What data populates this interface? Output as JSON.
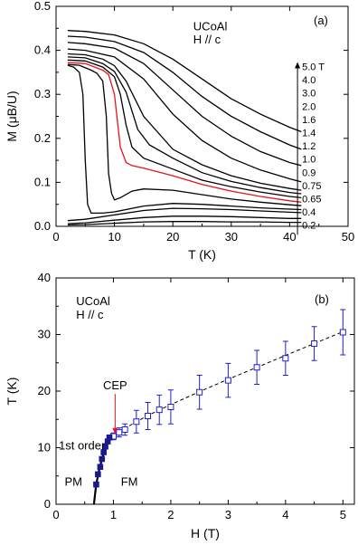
{
  "chart_data": [
    {
      "type": "line",
      "panel_label": "(a)",
      "annotation": [
        "UCoAl",
        "H // c"
      ],
      "xlabel": "T (K)",
      "ylabel": "M (μB/U)",
      "xlim": [
        0,
        50
      ],
      "ylim": [
        0,
        0.5
      ],
      "xticks": [
        "0",
        "10",
        "20",
        "30",
        "40",
        "50"
      ],
      "yticks": [
        "0.0",
        "0.1",
        "0.2",
        "0.3",
        "0.4",
        "0.5"
      ],
      "legend_order": [
        "5.0 T",
        "4.0",
        "3.0",
        "2.0",
        "1.6",
        "1.4",
        "1.2",
        "1.0",
        "0.9",
        "0.75",
        "0.65",
        "0.4",
        "0.2"
      ],
      "highlight_series": "1.0",
      "highlight_color": "#e8141a",
      "series": [
        {
          "name": "5.0 T",
          "color": "#000000",
          "x": [
            2,
            5,
            10,
            15,
            20,
            25,
            30,
            35,
            40,
            42
          ],
          "y": [
            0.445,
            0.443,
            0.435,
            0.415,
            0.38,
            0.335,
            0.29,
            0.255,
            0.225,
            0.215
          ]
        },
        {
          "name": "4.0",
          "color": "#000000",
          "x": [
            2,
            5,
            10,
            15,
            20,
            25,
            30,
            35,
            40,
            42
          ],
          "y": [
            0.432,
            0.43,
            0.42,
            0.395,
            0.35,
            0.295,
            0.25,
            0.215,
            0.185,
            0.175
          ]
        },
        {
          "name": "3.0",
          "color": "#000000",
          "x": [
            2,
            5,
            10,
            15,
            20,
            25,
            30,
            35,
            40,
            42
          ],
          "y": [
            0.418,
            0.415,
            0.405,
            0.37,
            0.31,
            0.25,
            0.205,
            0.17,
            0.145,
            0.138
          ]
        },
        {
          "name": "2.0",
          "color": "#000000",
          "x": [
            2,
            5,
            10,
            15,
            20,
            25,
            30,
            35,
            40,
            42
          ],
          "y": [
            0.403,
            0.4,
            0.385,
            0.335,
            0.255,
            0.195,
            0.155,
            0.128,
            0.108,
            0.101
          ]
        },
        {
          "name": "1.6",
          "color": "#000000",
          "x": [
            2,
            5,
            8,
            10,
            12,
            15,
            20,
            25,
            30,
            35,
            40,
            42
          ],
          "y": [
            0.392,
            0.39,
            0.38,
            0.365,
            0.33,
            0.25,
            0.175,
            0.14,
            0.115,
            0.098,
            0.086,
            0.082
          ]
        },
        {
          "name": "1.4",
          "color": "#000000",
          "x": [
            2,
            5,
            8,
            10,
            12,
            14,
            16,
            20,
            25,
            30,
            35,
            40,
            42
          ],
          "y": [
            0.385,
            0.383,
            0.37,
            0.352,
            0.305,
            0.22,
            0.185,
            0.155,
            0.122,
            0.102,
            0.088,
            0.077,
            0.074
          ]
        },
        {
          "name": "1.2",
          "color": "#000000",
          "x": [
            2,
            5,
            8,
            10,
            11,
            12,
            13,
            15,
            20,
            25,
            30,
            35,
            40,
            42
          ],
          "y": [
            0.378,
            0.376,
            0.362,
            0.34,
            0.3,
            0.23,
            0.18,
            0.155,
            0.13,
            0.105,
            0.09,
            0.078,
            0.068,
            0.065
          ]
        },
        {
          "name": "1.0",
          "color": "#e8141a",
          "x": [
            2,
            5,
            8,
            9,
            10,
            11,
            12,
            13,
            15,
            20,
            25,
            30,
            35,
            40,
            42
          ],
          "y": [
            0.372,
            0.37,
            0.355,
            0.345,
            0.3,
            0.18,
            0.145,
            0.138,
            0.132,
            0.115,
            0.095,
            0.08,
            0.068,
            0.058,
            0.055
          ]
        },
        {
          "name": "0.9",
          "color": "#000000",
          "x": [
            2,
            4,
            6,
            7,
            8,
            8.6,
            9,
            9.5,
            10,
            11,
            13,
            15,
            20,
            25,
            30,
            35,
            40,
            42
          ],
          "y": [
            0.368,
            0.366,
            0.355,
            0.348,
            0.33,
            0.25,
            0.12,
            0.075,
            0.06,
            0.065,
            0.08,
            0.085,
            0.082,
            0.072,
            0.062,
            0.055,
            0.049,
            0.047
          ]
        },
        {
          "name": "0.75",
          "color": "#000000",
          "x": [
            2,
            3,
            4,
            4.6,
            5,
            5.4,
            6,
            8,
            10,
            15,
            20,
            25,
            30,
            35,
            40,
            42
          ],
          "y": [
            0.366,
            0.362,
            0.35,
            0.3,
            0.15,
            0.05,
            0.03,
            0.03,
            0.033,
            0.046,
            0.052,
            0.05,
            0.046,
            0.042,
            0.039,
            0.038
          ]
        },
        {
          "name": "0.65",
          "color": "#000000",
          "x": [
            2,
            5,
            10,
            15,
            20,
            25,
            30,
            35,
            40,
            42
          ],
          "y": [
            0.013,
            0.016,
            0.026,
            0.036,
            0.041,
            0.04,
            0.038,
            0.035,
            0.032,
            0.031
          ]
        },
        {
          "name": "0.4",
          "color": "#000000",
          "x": [
            2,
            5,
            10,
            15,
            20,
            25,
            30,
            35,
            40,
            42
          ],
          "y": [
            0.006,
            0.008,
            0.014,
            0.02,
            0.023,
            0.023,
            0.022,
            0.02,
            0.018,
            0.018
          ]
        },
        {
          "name": "0.2",
          "color": "#000000",
          "x": [
            2,
            5,
            10,
            15,
            20,
            25,
            30,
            35,
            40,
            42
          ],
          "y": [
            0.003,
            0.004,
            0.007,
            0.01,
            0.011,
            0.011,
            0.01,
            0.01,
            0.009,
            0.009
          ]
        }
      ]
    },
    {
      "type": "scatter",
      "panel_label": "(b)",
      "annotation": [
        "UCoAl",
        "H // c"
      ],
      "xlabel": "H (T)",
      "ylabel": "T (K)",
      "xlim": [
        0,
        5.2
      ],
      "ylim": [
        0,
        40
      ],
      "xticks": [
        "0",
        "1",
        "2",
        "3",
        "4",
        "5"
      ],
      "yticks": [
        "0",
        "10",
        "20",
        "30",
        "40"
      ],
      "labels": {
        "cep": "CEP",
        "first_order": "1st order",
        "pm": "PM",
        "fm": "FM"
      },
      "cep_color": "#e8141a",
      "marker_color": "#1f1fd6",
      "first_order_points": {
        "x": [
          0.7,
          0.73,
          0.77,
          0.8,
          0.83,
          0.86,
          0.9,
          0.93
        ],
        "y": [
          3.5,
          5.3,
          6.6,
          8.0,
          9.2,
          10.2,
          11.1,
          11.8
        ]
      },
      "crossover_points": {
        "x": [
          1.0,
          1.1,
          1.2,
          1.4,
          1.6,
          1.8,
          2.0,
          2.5,
          3.0,
          3.5,
          4.0,
          4.5,
          5.0
        ],
        "y": [
          12.0,
          12.7,
          13.2,
          14.6,
          15.6,
          16.7,
          17.2,
          19.8,
          21.9,
          24.2,
          25.8,
          28.4,
          30.4
        ],
        "err": [
          0.6,
          0.8,
          1.0,
          2.0,
          2.4,
          2.6,
          3.0,
          3.0,
          3.0,
          3.0,
          3.0,
          3.0,
          4.0
        ]
      },
      "first_order_line": {
        "x": [
          0.66,
          0.7,
          0.75,
          0.8,
          0.85,
          0.9,
          0.95,
          1.0
        ],
        "y": [
          0.0,
          3.5,
          6.0,
          8.0,
          9.6,
          10.9,
          11.6,
          12.0
        ]
      },
      "dashed_line": {
        "x": [
          1.0,
          1.3,
          1.6,
          2.0,
          2.5,
          3.0,
          3.5,
          4.0,
          4.5,
          5.0
        ],
        "y": [
          12.0,
          14.0,
          15.7,
          17.6,
          19.9,
          22.1,
          24.2,
          26.3,
          28.4,
          30.5
        ]
      },
      "cep_point": [
        1.03,
        12.2
      ]
    }
  ]
}
